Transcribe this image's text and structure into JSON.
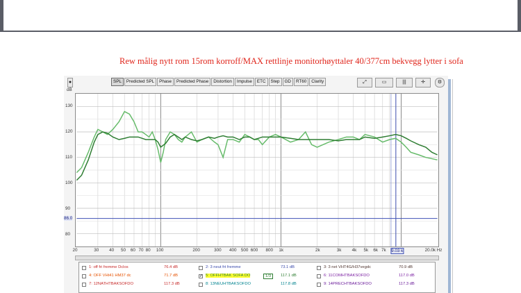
{
  "caption": "Rew målig nytt rom 15rom korroff/MAX rettlinje monitorhøyttaler 40/377cm bekvegg lytter i sofa",
  "tabs": [
    "SPL",
    "Predicted SPL",
    "Phase",
    "Predicted Phase",
    "Distortion",
    "Impulse",
    "ETC",
    "Step",
    "GD",
    "RT60",
    "Clarity"
  ],
  "active_tab": "SPL",
  "chart_data": {
    "type": "line",
    "ylabel": "dB",
    "x_scale": "log",
    "xlim": [
      20,
      20000
    ],
    "ylim": [
      75,
      135
    ],
    "yticks": [
      80,
      90,
      100,
      110,
      120,
      130
    ],
    "ytick_labels": [
      "80",
      "90",
      "100",
      "110",
      "120",
      "130"
    ],
    "xtick_labels": [
      "20",
      "30",
      "40",
      "50",
      "60",
      "70",
      "80",
      "100",
      "200",
      "300",
      "400",
      "500",
      "600",
      "800",
      "1k",
      "2k",
      "3k",
      "4k",
      "5k",
      "6k",
      "7k",
      "9.03 k",
      "20.0k Hz"
    ],
    "cursor_x": "9.03 k",
    "cursor_y_label": "86.0",
    "cursor_y": 86,
    "series": [
      {
        "color": "#2e7d32",
        "x": [
          20,
          22,
          25,
          28,
          30,
          33,
          36,
          40,
          45,
          50,
          55,
          60,
          65,
          70,
          75,
          80,
          85,
          90,
          95,
          100,
          110,
          120,
          130,
          140,
          150,
          160,
          180,
          200,
          220,
          250,
          280,
          300,
          330,
          360,
          400,
          450,
          500,
          550,
          600,
          650,
          700,
          800,
          900,
          1000,
          1200,
          1400,
          1600,
          1800,
          2000,
          2500,
          3000,
          3500,
          4000,
          4500,
          5000,
          6000,
          7000,
          8000,
          9000,
          10000,
          11000,
          12000,
          14000,
          16000,
          18000,
          20000
        ],
        "y": [
          101,
          103,
          109,
          116,
          119,
          120,
          119.5,
          118,
          117,
          117.5,
          118,
          118,
          118,
          117.5,
          117,
          117,
          117,
          117,
          116,
          114,
          115.5,
          118,
          119,
          118,
          117,
          118,
          117,
          116.5,
          117,
          118,
          117.5,
          118,
          118.5,
          118,
          118,
          117,
          118,
          118,
          117,
          117.5,
          118,
          118,
          118,
          118,
          117.5,
          117,
          117,
          117,
          117,
          117,
          116.5,
          117,
          117,
          117,
          118,
          117.5,
          118,
          118.5,
          119,
          118.5,
          117.5,
          116.5,
          115,
          114,
          112,
          111
        ]
      },
      {
        "color": "#66bb6a",
        "x": [
          20,
          22,
          25,
          28,
          30,
          33,
          36,
          40,
          45,
          50,
          55,
          60,
          65,
          70,
          75,
          80,
          85,
          90,
          95,
          100,
          105,
          110,
          120,
          130,
          140,
          150,
          160,
          180,
          200,
          220,
          250,
          280,
          300,
          330,
          360,
          400,
          450,
          500,
          550,
          600,
          650,
          700,
          800,
          900,
          1000,
          1200,
          1400,
          1600,
          1800,
          2000,
          2500,
          3000,
          3500,
          4000,
          4500,
          5000,
          6000,
          7000,
          8000,
          9000,
          10000,
          11000,
          12000,
          14000,
          16000,
          18000,
          20000
        ],
        "y": [
          104,
          106,
          112,
          118,
          121,
          120,
          119,
          121,
          124,
          128,
          127,
          124,
          120,
          120,
          119,
          118,
          120,
          117,
          113,
          108,
          112,
          117,
          120,
          119,
          117,
          116,
          118,
          120,
          116,
          117,
          118,
          116,
          115,
          110,
          117,
          117,
          116,
          119,
          118,
          117,
          117,
          115,
          118,
          119,
          118,
          116,
          117,
          120,
          115,
          114,
          116,
          117,
          118,
          118,
          117,
          119,
          118,
          116,
          117,
          117.5,
          116,
          114,
          112,
          111,
          110,
          109.5,
          109
        ]
      }
    ]
  },
  "legend": {
    "rows": [
      [
        {
          "checked": false,
          "label": "1: off fri fremme Dclos",
          "value": "76.4 dB",
          "color": "#c62828"
        },
        {
          "checked": false,
          "label": "2: 3 neut frt fremme",
          "value": "73.1 dB",
          "color": "#3949ab"
        },
        {
          "checked": false,
          "label": "3: 3 net VHT4G/H37vegdc",
          "value": "70.9 dB",
          "color": "#4e342e"
        }
      ],
      [
        {
          "checked": false,
          "label": "4: OFF VHt41 HM37 dc",
          "value": "71.7 dB",
          "color": "#e65100"
        },
        {
          "checked": true,
          "label": "5: OFFHTBAK SOFA DO",
          "value": "117.1 dB",
          "color": "#2e7d32",
          "highlight": true
        },
        {
          "checked": false,
          "label": "6: 11COMHTBAKSOFDO",
          "value": "117.0 dB",
          "color": "#7b1fa2"
        }
      ],
      [
        {
          "checked": false,
          "label": "7: 12NATHTBAKSOFDO",
          "value": "117.3 dB",
          "color": "#c62828"
        },
        {
          "checked": false,
          "label": "8: 13NEUHTBAKSOFDO",
          "value": "117.8 dB",
          "color": "#00838f"
        },
        {
          "checked": false,
          "label": "9: 14PRECHTBAKSOFDO",
          "value": "117.3 dB",
          "color": "#6a1b9a"
        }
      ]
    ],
    "smoothing_badge": "1/3"
  }
}
